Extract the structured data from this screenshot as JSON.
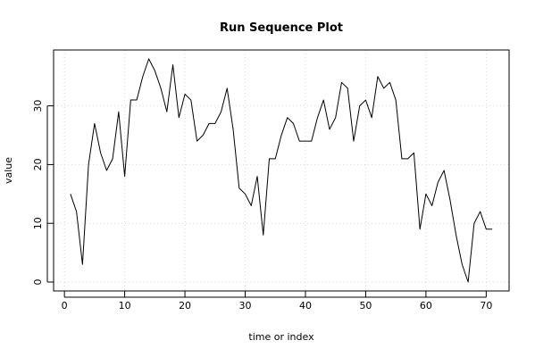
{
  "chart_data": {
    "type": "line",
    "title": "Run Sequence Plot",
    "xlabel": "time or index",
    "ylabel": "value",
    "x_ticks": [
      "0",
      "10",
      "20",
      "30",
      "40",
      "50",
      "60",
      "70"
    ],
    "y_ticks": [
      "0",
      "10",
      "20",
      "30"
    ],
    "xlim": [
      -1.8,
      73.8
    ],
    "ylim": [
      -1.52,
      39.52
    ],
    "grid": true,
    "x": [
      1,
      2,
      3,
      4,
      5,
      6,
      7,
      8,
      9,
      10,
      11,
      12,
      13,
      14,
      15,
      16,
      17,
      18,
      19,
      20,
      21,
      22,
      23,
      24,
      25,
      26,
      27,
      28,
      29,
      30,
      31,
      32,
      33,
      34,
      35,
      36,
      37,
      38,
      39,
      40,
      41,
      42,
      43,
      44,
      45,
      46,
      47,
      48,
      49,
      50,
      51,
      52,
      53,
      54,
      55,
      56,
      57,
      58,
      59,
      60,
      61,
      62,
      63,
      64,
      65,
      66,
      67,
      68,
      69,
      70,
      71
    ],
    "series": [
      {
        "values": [
          15,
          12,
          3,
          20,
          27,
          22,
          19,
          21,
          29,
          18,
          31,
          31,
          35,
          38,
          36,
          33,
          29,
          37,
          28,
          32,
          31,
          24,
          25,
          27,
          27,
          29,
          33,
          26,
          16,
          15,
          13,
          18,
          8,
          21,
          21,
          25,
          28,
          27,
          24,
          24,
          24,
          28,
          31,
          26,
          28,
          34,
          33,
          24,
          30,
          31,
          28,
          35,
          33,
          34,
          31,
          21,
          21,
          22,
          9,
          15,
          13,
          17,
          19,
          14,
          8,
          3,
          0,
          10,
          12,
          9,
          9
        ]
      }
    ]
  }
}
